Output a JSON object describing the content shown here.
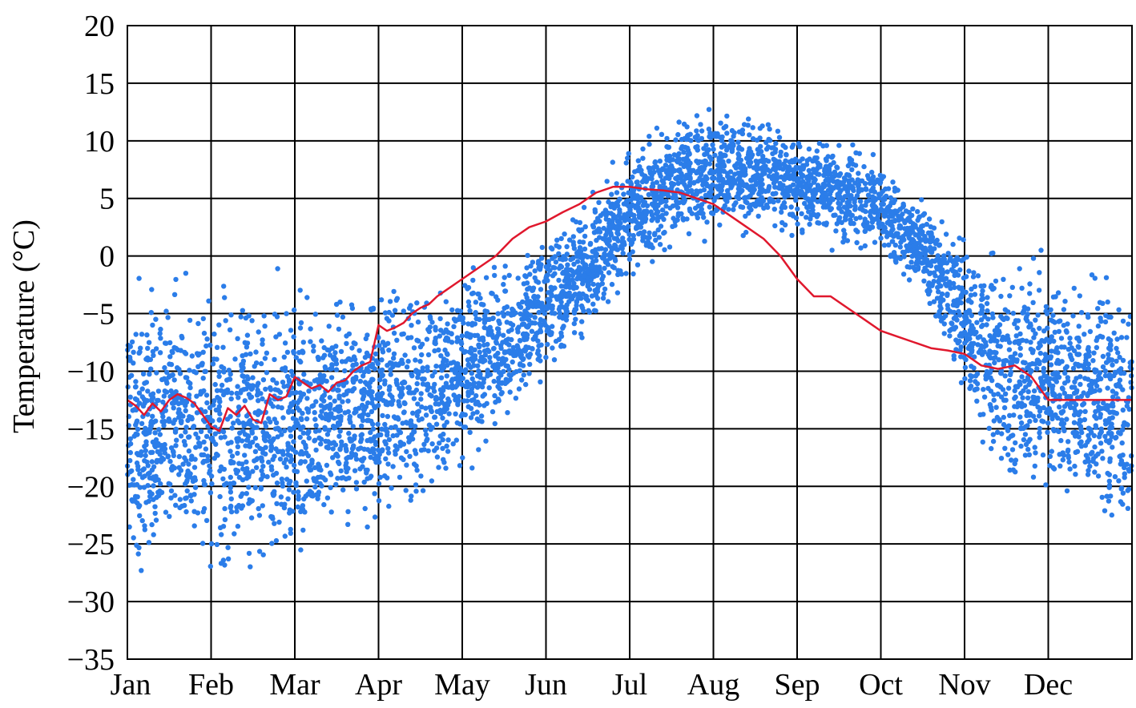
{
  "chart_data": {
    "type": "scatter",
    "title": "",
    "xlabel": "",
    "ylabel": "Temperature (°C)",
    "ylim": [
      -35,
      20
    ],
    "y_ticks": [
      20,
      15,
      10,
      5,
      0,
      -5,
      -10,
      -15,
      -20,
      -25,
      -30,
      -35
    ],
    "y_tick_labels": [
      "20",
      "15",
      "10",
      "5",
      "0",
      "−5",
      "−10",
      "−15",
      "−20",
      "−25",
      "−30",
      "−35"
    ],
    "x_unit": "month",
    "xlim": [
      0,
      12
    ],
    "months": [
      "Jan",
      "Feb",
      "Mar",
      "Apr",
      "May",
      "Jun",
      "Jul",
      "Aug",
      "Sep",
      "Oct",
      "Nov",
      "Dec"
    ],
    "grid": true,
    "legend": false,
    "colors": {
      "points": "#2b7de9",
      "mean_line": "#e0182d",
      "grid": "#000000"
    },
    "series": [
      {
        "kind": "points",
        "description_points": "daily observations over many years",
        "envelope_by_month": [
          {
            "m": 0.0,
            "lo": -30,
            "hi": 0
          },
          {
            "m": 0.5,
            "lo": -29,
            "hi": 0
          },
          {
            "m": 1.0,
            "lo": -31,
            "hi": 0
          },
          {
            "m": 1.5,
            "lo": -30,
            "hi": 0
          },
          {
            "m": 2.0,
            "lo": -30,
            "hi": -1
          },
          {
            "m": 2.5,
            "lo": -26,
            "hi": -1
          },
          {
            "m": 3.0,
            "lo": -26,
            "hi": -1
          },
          {
            "m": 3.5,
            "lo": -24,
            "hi": 0
          },
          {
            "m": 4.0,
            "lo": -20,
            "hi": 0
          },
          {
            "m": 4.5,
            "lo": -16,
            "hi": 1
          },
          {
            "m": 5.0,
            "lo": -11,
            "hi": 3
          },
          {
            "m": 5.5,
            "lo": -8,
            "hi": 6
          },
          {
            "m": 6.0,
            "lo": -3,
            "hi": 10
          },
          {
            "m": 6.5,
            "lo": 0,
            "hi": 13
          },
          {
            "m": 7.0,
            "lo": 1,
            "hi": 14
          },
          {
            "m": 7.5,
            "lo": 1,
            "hi": 13
          },
          {
            "m": 8.0,
            "lo": 1,
            "hi": 12
          },
          {
            "m": 8.5,
            "lo": 0,
            "hi": 11
          },
          {
            "m": 9.0,
            "lo": -1,
            "hi": 9
          },
          {
            "m": 9.5,
            "lo": -4,
            "hi": 6
          },
          {
            "m": 10.0,
            "lo": -14,
            "hi": 3
          },
          {
            "m": 10.5,
            "lo": -22,
            "hi": 2
          },
          {
            "m": 11.0,
            "lo": -23,
            "hi": 2
          },
          {
            "m": 11.5,
            "lo": -25,
            "hi": 1
          },
          {
            "m": 12.0,
            "lo": -28,
            "hi": 0
          }
        ]
      },
      {
        "kind": "line",
        "x": [
          0.0,
          0.1,
          0.2,
          0.3,
          0.4,
          0.5,
          0.6,
          0.7,
          0.8,
          0.9,
          1.0,
          1.1,
          1.2,
          1.3,
          1.4,
          1.5,
          1.6,
          1.7,
          1.8,
          1.9,
          2.0,
          2.1,
          2.2,
          2.3,
          2.4,
          2.5,
          2.6,
          2.7,
          2.8,
          2.9,
          3.0,
          3.1,
          3.2,
          3.3,
          3.4,
          3.5,
          3.6,
          3.7,
          3.8,
          3.9,
          4.0,
          4.2,
          4.4,
          4.6,
          4.8,
          5.0,
          5.2,
          5.4,
          5.6,
          5.8,
          6.0,
          6.2,
          6.4,
          6.6,
          6.8,
          7.0,
          7.2,
          7.4,
          7.6,
          7.8,
          8.0,
          8.2,
          8.4,
          8.6,
          8.8,
          9.0,
          9.2,
          9.4,
          9.6,
          9.8,
          10.0,
          10.2,
          10.4,
          10.6,
          10.8,
          11.0,
          11.2,
          11.4,
          11.6,
          11.8,
          11.9,
          12.0
        ],
        "y": [
          -12.5,
          -13.0,
          -13.8,
          -12.8,
          -13.5,
          -12.5,
          -12.0,
          -12.3,
          -12.8,
          -13.8,
          -14.8,
          -15.2,
          -13.2,
          -13.8,
          -13.0,
          -14.2,
          -14.5,
          -12.0,
          -12.5,
          -12.2,
          -10.5,
          -11.0,
          -11.5,
          -11.2,
          -11.8,
          -11.0,
          -10.8,
          -10.0,
          -9.5,
          -9.2,
          -6.0,
          -6.5,
          -6.2,
          -5.8,
          -5.0,
          -4.5,
          -4.2,
          -3.5,
          -3.0,
          -2.5,
          -2.0,
          -1.0,
          0.0,
          1.5,
          2.5,
          3.0,
          3.8,
          4.5,
          5.5,
          6.0,
          6.0,
          5.8,
          5.7,
          5.5,
          5.0,
          4.5,
          3.5,
          2.5,
          1.5,
          0.0,
          -2.0,
          -3.5,
          -3.5,
          -4.5,
          -5.5,
          -6.5,
          -7.0,
          -7.5,
          -8.0,
          -8.2,
          -8.5,
          -9.5,
          -9.8,
          -9.5,
          -10.5,
          -12.5,
          -12.5,
          -12.5,
          -12.5,
          -12.5,
          -12.5,
          -12.5
        ]
      }
    ]
  }
}
